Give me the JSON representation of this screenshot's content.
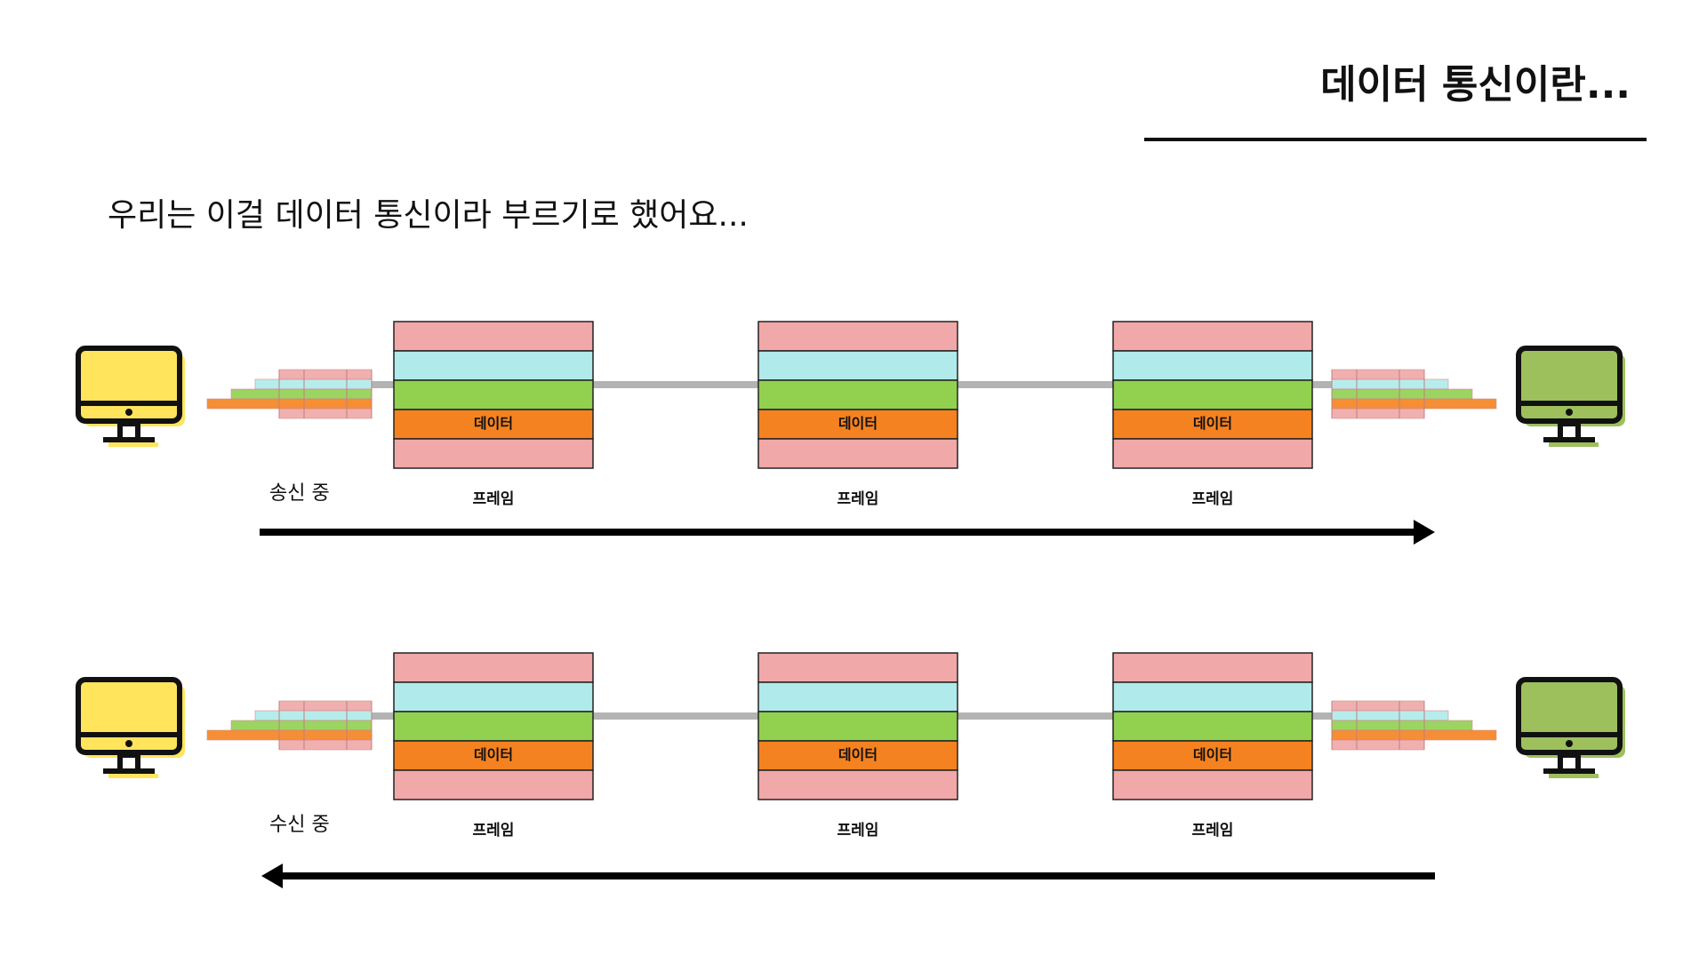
{
  "header": {
    "title": "데이터 통신이란..."
  },
  "subtitle": "우리는 이걸 데이터 통신이라 부르기로 했어요...",
  "rows": [
    {
      "status": "송신 중",
      "frames": [
        {
          "data_label": "데이터",
          "caption": "프레임"
        },
        {
          "data_label": "데이터",
          "caption": "프레임"
        },
        {
          "data_label": "데이터",
          "caption": "프레임"
        }
      ]
    },
    {
      "status": "수신 중",
      "frames": [
        {
          "data_label": "데이터",
          "caption": "프레임"
        },
        {
          "data_label": "데이터",
          "caption": "프레임"
        },
        {
          "data_label": "데이터",
          "caption": "프레임"
        }
      ]
    }
  ]
}
